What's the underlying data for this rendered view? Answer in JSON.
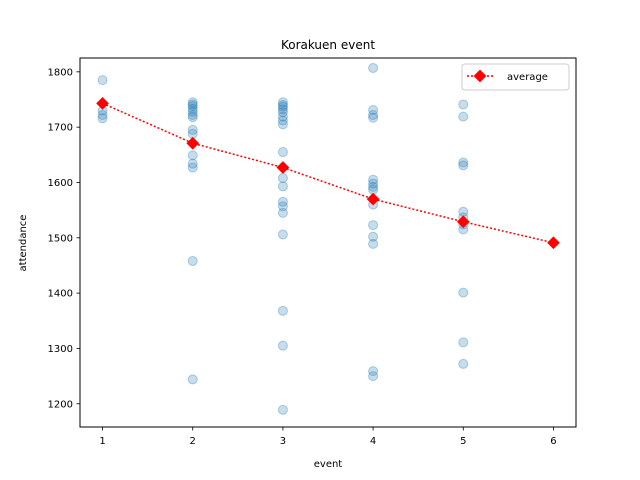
{
  "chart_data": {
    "type": "scatter",
    "title": "Korakuen event",
    "xlabel": "event",
    "ylabel": "attendance",
    "xlim": [
      0.75,
      6.25
    ],
    "ylim": [
      1158,
      1825
    ],
    "xticks": [
      1,
      2,
      3,
      4,
      5,
      6
    ],
    "yticks": [
      1200,
      1300,
      1400,
      1500,
      1600,
      1700,
      1800
    ],
    "grid": false,
    "legend_position": "top-right",
    "colors": {
      "scatter": "#1f77b4",
      "average": "#ff0000"
    },
    "series": [
      {
        "type": "scatter",
        "points": [
          [
            1,
            1785
          ],
          [
            1,
            1730
          ],
          [
            1,
            1722
          ],
          [
            1,
            1716
          ],
          [
            2,
            1745
          ],
          [
            2,
            1741
          ],
          [
            2,
            1738
          ],
          [
            2,
            1733
          ],
          [
            2,
            1728
          ],
          [
            2,
            1722
          ],
          [
            2,
            1718
          ],
          [
            2,
            1695
          ],
          [
            2,
            1688
          ],
          [
            2,
            1649
          ],
          [
            2,
            1634
          ],
          [
            2,
            1627
          ],
          [
            2,
            1458
          ],
          [
            2,
            1244
          ],
          [
            3,
            1745
          ],
          [
            3,
            1740
          ],
          [
            3,
            1737
          ],
          [
            3,
            1732
          ],
          [
            3,
            1727
          ],
          [
            3,
            1719
          ],
          [
            3,
            1712
          ],
          [
            3,
            1705
          ],
          [
            3,
            1655
          ],
          [
            3,
            1608
          ],
          [
            3,
            1593
          ],
          [
            3,
            1565
          ],
          [
            3,
            1557
          ],
          [
            3,
            1545
          ],
          [
            3,
            1506
          ],
          [
            3,
            1368
          ],
          [
            3,
            1305
          ],
          [
            3,
            1189
          ],
          [
            4,
            1807
          ],
          [
            4,
            1731
          ],
          [
            4,
            1722
          ],
          [
            4,
            1717
          ],
          [
            4,
            1605
          ],
          [
            4,
            1598
          ],
          [
            4,
            1592
          ],
          [
            4,
            1587
          ],
          [
            4,
            1560
          ],
          [
            4,
            1523
          ],
          [
            4,
            1502
          ],
          [
            4,
            1489
          ],
          [
            4,
            1259
          ],
          [
            4,
            1250
          ],
          [
            5,
            1741
          ],
          [
            5,
            1719
          ],
          [
            5,
            1636
          ],
          [
            5,
            1631
          ],
          [
            5,
            1547
          ],
          [
            5,
            1537
          ],
          [
            5,
            1524
          ],
          [
            5,
            1515
          ],
          [
            5,
            1401
          ],
          [
            5,
            1311
          ],
          [
            5,
            1272
          ]
        ]
      },
      {
        "type": "line",
        "name": "average",
        "x": [
          1,
          2,
          3,
          4,
          5,
          6
        ],
        "y": [
          1743,
          1671,
          1627,
          1570,
          1529,
          1491
        ]
      }
    ]
  }
}
